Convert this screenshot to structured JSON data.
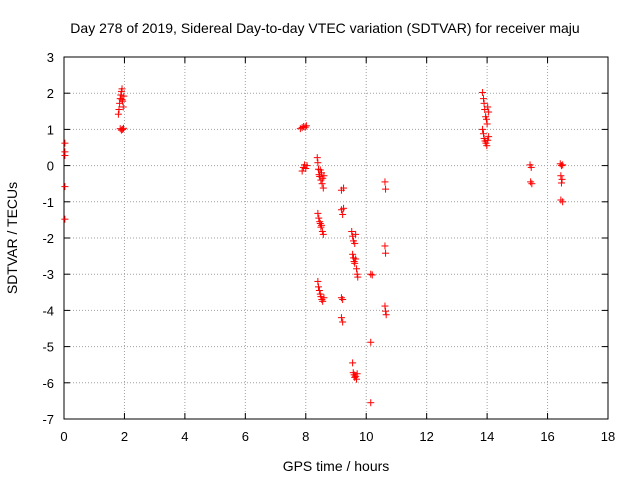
{
  "chart_data": {
    "type": "scatter",
    "title": "Day 278 of 2019, Sidereal Day-to-day VTEC variation (SDTVAR) for receiver maju",
    "xlabel": "GPS time / hours",
    "ylabel": "SDTVAR / TECUs",
    "xlim": [
      0,
      18
    ],
    "ylim": [
      -7,
      3
    ],
    "xticks": [
      0,
      2,
      4,
      6,
      8,
      10,
      12,
      14,
      16,
      18
    ],
    "yticks": [
      3,
      2,
      1,
      0,
      -1,
      -2,
      -3,
      -4,
      -5,
      -6,
      -7
    ],
    "grid": true,
    "marker": "+",
    "marker_color": "#ff0000",
    "series": [
      {
        "name": "SDTVAR",
        "points": [
          [
            0.03,
            0.62
          ],
          [
            0.03,
            0.38
          ],
          [
            0.03,
            0.28
          ],
          [
            0.03,
            -0.58
          ],
          [
            0.03,
            -1.48
          ],
          [
            1.8,
            1.42
          ],
          [
            1.82,
            1.55
          ],
          [
            1.84,
            1.72
          ],
          [
            1.86,
            1.85
          ],
          [
            1.88,
            1.95
          ],
          [
            1.9,
            2.05
          ],
          [
            1.92,
            2.12
          ],
          [
            1.94,
            1.78
          ],
          [
            1.96,
            1.62
          ],
          [
            1.92,
            1.82
          ],
          [
            1.98,
            1.92
          ],
          [
            1.86,
            1.02
          ],
          [
            1.9,
            0.98
          ],
          [
            1.94,
            1.0
          ],
          [
            1.97,
            1.03
          ],
          [
            7.82,
            1.02
          ],
          [
            7.88,
            1.05
          ],
          [
            7.93,
            1.08
          ],
          [
            7.98,
            1.06
          ],
          [
            8.02,
            1.1
          ],
          [
            7.88,
            -0.15
          ],
          [
            7.92,
            -0.05
          ],
          [
            7.96,
            0.02
          ],
          [
            8.0,
            -0.08
          ],
          [
            8.04,
            0.0
          ],
          [
            8.38,
            0.22
          ],
          [
            8.4,
            0.08
          ],
          [
            8.42,
            -0.1
          ],
          [
            8.44,
            -0.25
          ],
          [
            8.46,
            -0.3
          ],
          [
            8.48,
            -0.12
          ],
          [
            8.5,
            -0.4
          ],
          [
            8.52,
            -0.2
          ],
          [
            8.54,
            -0.5
          ],
          [
            8.56,
            -0.35
          ],
          [
            8.58,
            -0.62
          ],
          [
            8.6,
            -0.28
          ],
          [
            8.4,
            -1.32
          ],
          [
            8.43,
            -1.45
          ],
          [
            8.46,
            -1.55
          ],
          [
            8.48,
            -1.6
          ],
          [
            8.5,
            -1.7
          ],
          [
            8.52,
            -1.65
          ],
          [
            8.55,
            -1.82
          ],
          [
            8.58,
            -1.9
          ],
          [
            8.4,
            -3.2
          ],
          [
            8.42,
            -3.35
          ],
          [
            8.45,
            -3.45
          ],
          [
            8.48,
            -3.55
          ],
          [
            8.5,
            -3.62
          ],
          [
            8.53,
            -3.7
          ],
          [
            8.56,
            -3.75
          ],
          [
            8.6,
            -3.65
          ],
          [
            9.18,
            -0.68
          ],
          [
            9.25,
            -0.62
          ],
          [
            9.18,
            -1.22
          ],
          [
            9.22,
            -1.35
          ],
          [
            9.25,
            -1.18
          ],
          [
            9.18,
            -3.65
          ],
          [
            9.22,
            -3.7
          ],
          [
            9.18,
            -4.2
          ],
          [
            9.22,
            -4.32
          ],
          [
            9.52,
            -1.82
          ],
          [
            9.55,
            -1.95
          ],
          [
            9.58,
            -2.08
          ],
          [
            9.62,
            -2.15
          ],
          [
            9.65,
            -1.9
          ],
          [
            9.55,
            -2.45
          ],
          [
            9.58,
            -2.55
          ],
          [
            9.6,
            -2.65
          ],
          [
            9.62,
            -2.7
          ],
          [
            9.65,
            -2.58
          ],
          [
            9.68,
            -2.85
          ],
          [
            9.7,
            -3.0
          ],
          [
            9.72,
            -3.08
          ],
          [
            9.55,
            -5.45
          ],
          [
            9.57,
            -5.72
          ],
          [
            9.6,
            -5.78
          ],
          [
            9.62,
            -5.85
          ],
          [
            9.65,
            -5.82
          ],
          [
            9.68,
            -5.9
          ],
          [
            9.7,
            -5.75
          ],
          [
            10.15,
            -3.0
          ],
          [
            10.2,
            -3.02
          ],
          [
            10.15,
            -4.88
          ],
          [
            10.15,
            -6.55
          ],
          [
            10.62,
            -0.45
          ],
          [
            10.64,
            -0.65
          ],
          [
            10.62,
            -2.22
          ],
          [
            10.64,
            -2.42
          ],
          [
            10.62,
            -3.88
          ],
          [
            10.64,
            -4.02
          ],
          [
            10.66,
            -4.12
          ],
          [
            13.85,
            2.02
          ],
          [
            13.88,
            1.85
          ],
          [
            13.9,
            1.72
          ],
          [
            13.92,
            1.55
          ],
          [
            13.95,
            1.35
          ],
          [
            13.98,
            1.28
          ],
          [
            14.0,
            1.15
          ],
          [
            14.02,
            1.62
          ],
          [
            14.05,
            1.48
          ],
          [
            13.85,
            1.0
          ],
          [
            13.88,
            0.88
          ],
          [
            13.9,
            0.75
          ],
          [
            13.93,
            0.68
          ],
          [
            13.96,
            0.62
          ],
          [
            13.99,
            0.55
          ],
          [
            14.02,
            0.7
          ],
          [
            14.05,
            0.8
          ],
          [
            15.42,
            0.02
          ],
          [
            15.46,
            -0.05
          ],
          [
            15.44,
            -0.45
          ],
          [
            15.48,
            -0.5
          ],
          [
            16.42,
            0.05
          ],
          [
            16.46,
            0.0
          ],
          [
            16.5,
            0.02
          ],
          [
            16.44,
            -0.28
          ],
          [
            16.48,
            -0.38
          ],
          [
            16.46,
            -0.48
          ],
          [
            16.44,
            -0.95
          ],
          [
            16.5,
            -1.0
          ]
        ]
      }
    ]
  }
}
